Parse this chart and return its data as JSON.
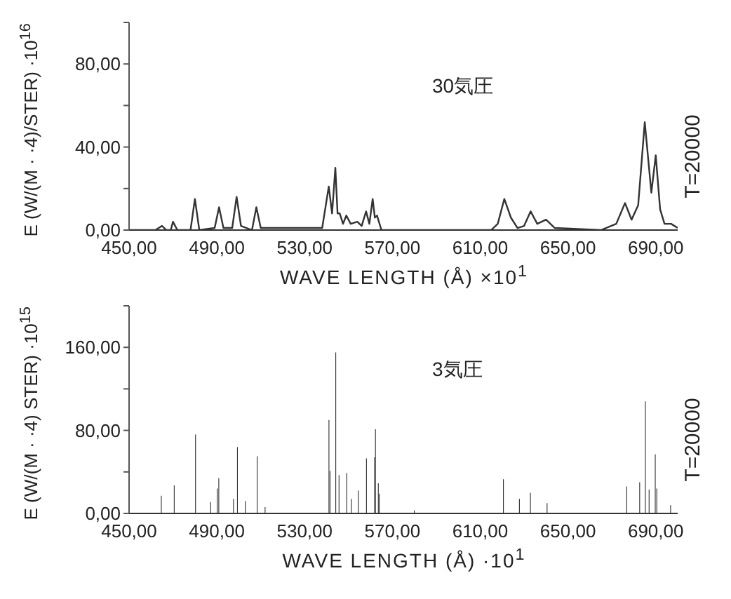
{
  "chart_data": [
    {
      "type": "line",
      "ylabel": "E (W/(M · ·4)/STER) ·10$^{16}$",
      "xlabel": "WAVE LENGTH (Å) ×10$^{1}$",
      "annotations": [
        "30気圧",
        "T=20000"
      ],
      "xlim": [
        450,
        700
      ],
      "xticks": [
        {
          "value": 450,
          "label": "450,00"
        },
        {
          "value": 490,
          "label": "490,00"
        },
        {
          "value": 530,
          "label": "530,00"
        },
        {
          "value": 570,
          "label": "570,00"
        },
        {
          "value": 610,
          "label": "610,00"
        },
        {
          "value": 650,
          "label": "650,00"
        },
        {
          "value": 690,
          "label": "690,00"
        }
      ],
      "ylim": [
        0,
        100
      ],
      "yticks": [
        {
          "value": 0,
          "label": "0,00"
        },
        {
          "value": 20,
          "label": null
        },
        {
          "value": 40,
          "label": "40,00"
        },
        {
          "value": 60,
          "label": null
        },
        {
          "value": 80,
          "label": "80,00"
        },
        {
          "value": 100,
          "label": null
        }
      ],
      "marker": "none",
      "line_style": "solid",
      "series": [
        {
          "color": "#333333",
          "x": [
            450,
            462,
            465,
            467,
            469,
            470,
            472,
            478,
            480,
            482,
            489,
            491,
            493,
            497,
            499,
            501,
            506,
            508,
            510,
            538,
            541,
            542.5,
            544,
            545,
            546,
            547.5,
            549,
            551,
            554,
            556,
            558,
            559.5,
            561,
            562,
            563,
            565,
            615,
            618,
            621,
            624,
            627,
            630,
            633,
            636,
            640,
            644,
            665,
            672,
            676,
            679,
            682,
            685,
            688,
            690,
            692,
            694,
            697,
            700
          ],
          "values": [
            0,
            0,
            2,
            0,
            0,
            4,
            0,
            0,
            15,
            0,
            1,
            11,
            1,
            1,
            16,
            2,
            0,
            11,
            1,
            1,
            21,
            8,
            30,
            8,
            8,
            3,
            7,
            3,
            4,
            2,
            9,
            3,
            15,
            6,
            7,
            0,
            0,
            3,
            15,
            6,
            1,
            2,
            9,
            3,
            5,
            1,
            0,
            3,
            13,
            5,
            12,
            52,
            18,
            36,
            10,
            3,
            3,
            1
          ]
        }
      ]
    },
    {
      "type": "bar",
      "ylabel": "E (W/(M · ·4) STER) ·10$^{15}$",
      "xlabel": "WAVE LENGTH (Å) ·10$^{1}$",
      "annotations": [
        "3気圧",
        "T=20000"
      ],
      "xlim": [
        450,
        700
      ],
      "xticks": [
        {
          "value": 450,
          "label": "450,00"
        },
        {
          "value": 490,
          "label": "490,00"
        },
        {
          "value": 530,
          "label": "530,00"
        },
        {
          "value": 570,
          "label": "570,00"
        },
        {
          "value": 610,
          "label": "610,00"
        },
        {
          "value": 650,
          "label": "650,00"
        },
        {
          "value": 690,
          "label": "690,00"
        }
      ],
      "ylim": [
        0,
        200
      ],
      "yticks": [
        {
          "value": 0,
          "label": "0,00"
        },
        {
          "value": 40,
          "label": null
        },
        {
          "value": 80,
          "label": "80,00"
        },
        {
          "value": 120,
          "label": null
        },
        {
          "value": 160,
          "label": "160,00"
        },
        {
          "value": 200,
          "label": null
        }
      ],
      "series": [
        {
          "color": "#333333",
          "x": [
            464.7,
            470.6,
            480.3,
            487.2,
            490.2,
            490.9,
            497.6,
            499.4,
            503,
            508.4,
            512,
            541.1,
            541.6,
            544.2,
            545.7,
            549.2,
            551.3,
            554.5,
            558.2,
            561.9,
            562.3,
            563.6,
            564,
            580,
            620.6,
            627.9,
            632.9,
            640.5,
            676.8,
            682.7,
            685.3,
            687,
            689.8,
            690.5,
            696.8
          ],
          "values": [
            17,
            27,
            76,
            11,
            24,
            34,
            14,
            64,
            12,
            55,
            6,
            90,
            41,
            155,
            37,
            39,
            14,
            22,
            53,
            54,
            81,
            29,
            19,
            3,
            33,
            14,
            20,
            10,
            26,
            30,
            108,
            23,
            57,
            24,
            8
          ]
        }
      ]
    }
  ]
}
